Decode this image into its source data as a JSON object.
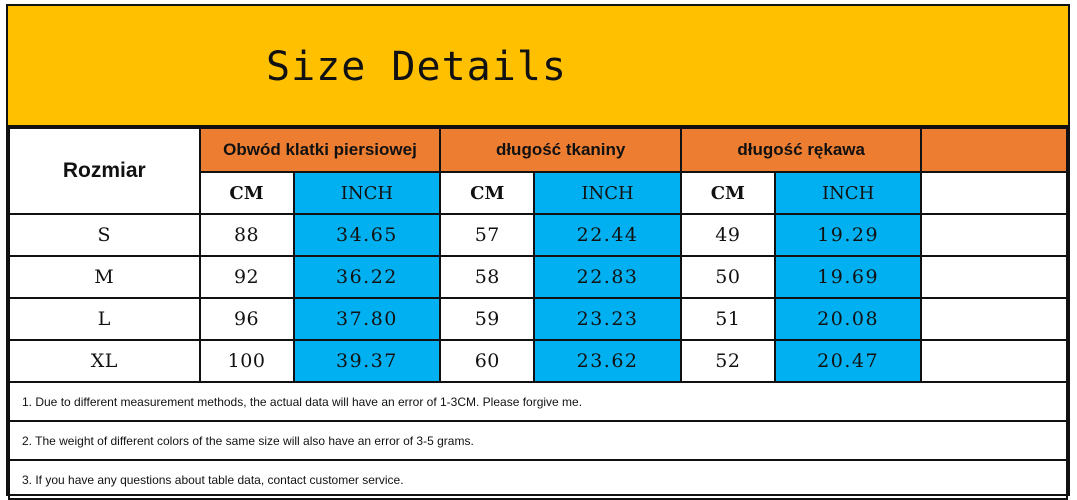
{
  "title": "Size Details",
  "colors": {
    "banner": "#ffc000",
    "header": "#ed7d31",
    "inch_column": "#00b0f0",
    "border": "#111111"
  },
  "table": {
    "size_header": "Rozmiar",
    "groups": [
      {
        "label": "Obwód klatki piersiowej",
        "unit_cm": "CM",
        "unit_inch": "INCH"
      },
      {
        "label": "długość tkaniny",
        "unit_cm": "CM",
        "unit_inch": "INCH"
      },
      {
        "label": "długość rękawa",
        "unit_cm": "CM",
        "unit_inch": "INCH"
      }
    ],
    "rows": [
      {
        "size": "S",
        "chest_cm": "88",
        "chest_inch": "34.65",
        "length_cm": "57",
        "length_inch": "22.44",
        "sleeve_cm": "49",
        "sleeve_inch": "19.29"
      },
      {
        "size": "M",
        "chest_cm": "92",
        "chest_inch": "36.22",
        "length_cm": "58",
        "length_inch": "22.83",
        "sleeve_cm": "50",
        "sleeve_inch": "19.69"
      },
      {
        "size": "L",
        "chest_cm": "96",
        "chest_inch": "37.80",
        "length_cm": "59",
        "length_inch": "23.23",
        "sleeve_cm": "51",
        "sleeve_inch": "20.08"
      },
      {
        "size": "XL",
        "chest_cm": "100",
        "chest_inch": "39.37",
        "length_cm": "60",
        "length_inch": "23.62",
        "sleeve_cm": "52",
        "sleeve_inch": "20.47"
      }
    ]
  },
  "notes": [
    "1. Due to different measurement methods, the actual data will have an error of 1-3CM. Please forgive me.",
    "2. The weight of different colors of the same size will also have an error of 3-5 grams.",
    "3. If you have any questions about table data, contact customer service."
  ]
}
